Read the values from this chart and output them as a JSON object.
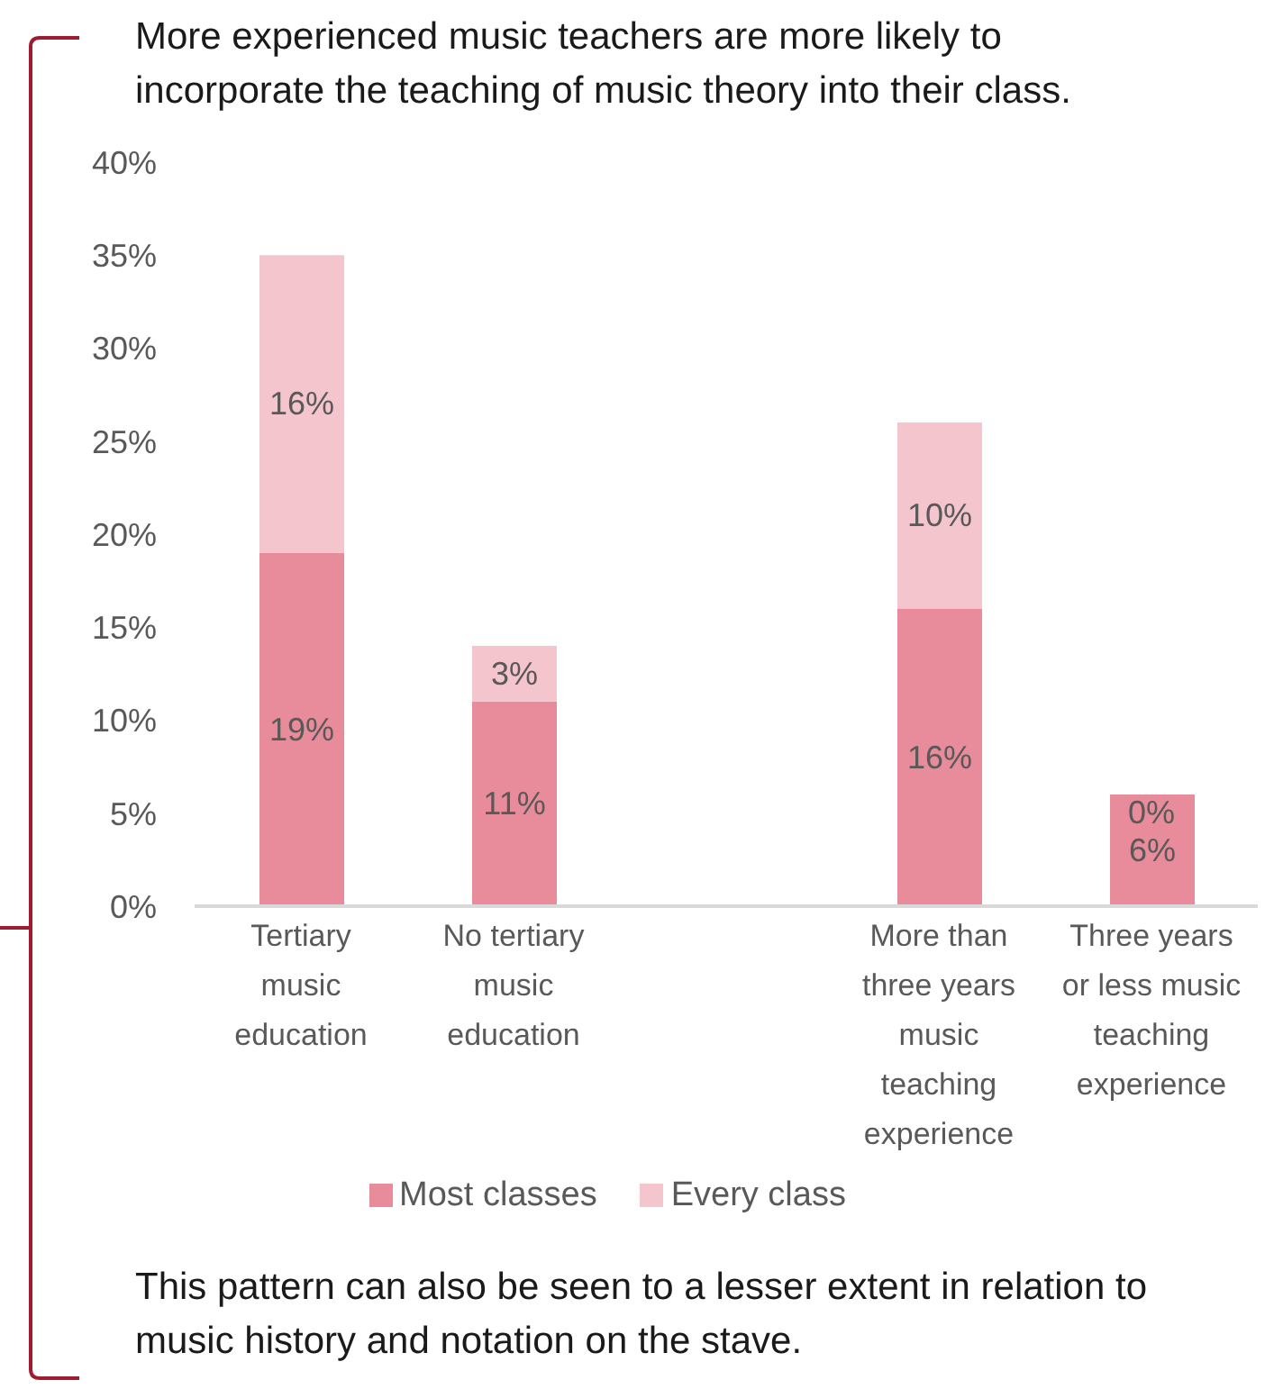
{
  "chart_data": {
    "type": "bar",
    "title": "More experienced music teachers are more likely to incorporate the teaching of music theory into their class.",
    "categories": [
      "Tertiary music education",
      "No tertiary music education",
      null,
      "More than three years music teaching experience",
      "Three years or less music teaching experience"
    ],
    "series": [
      {
        "name": "Most classes",
        "color": "#e88b9b",
        "values": [
          19,
          11,
          null,
          16,
          6
        ],
        "value_labels": [
          "19%",
          "11%",
          null,
          "16%",
          "6%"
        ]
      },
      {
        "name": "Every class",
        "color": "#f5c5ce",
        "values": [
          16,
          3,
          null,
          10,
          0
        ],
        "value_labels": [
          "16%",
          "3%",
          null,
          "10%",
          "0%"
        ]
      }
    ],
    "stacked": true,
    "ylim": [
      0,
      40
    ],
    "yticks": [
      {
        "value": 0,
        "label": "0%"
      },
      {
        "value": 5,
        "label": "5%"
      },
      {
        "value": 10,
        "label": "10%"
      },
      {
        "value": 15,
        "label": "15%"
      },
      {
        "value": 20,
        "label": "20%"
      },
      {
        "value": 25,
        "label": "25%"
      },
      {
        "value": 30,
        "label": "30%"
      },
      {
        "value": 35,
        "label": "35%"
      },
      {
        "value": 40,
        "label": "40%"
      }
    ],
    "legend": "bottom",
    "annotations": [
      "This pattern can also be seen to a lesser extent in relation to music history and notation on the stave."
    ]
  }
}
